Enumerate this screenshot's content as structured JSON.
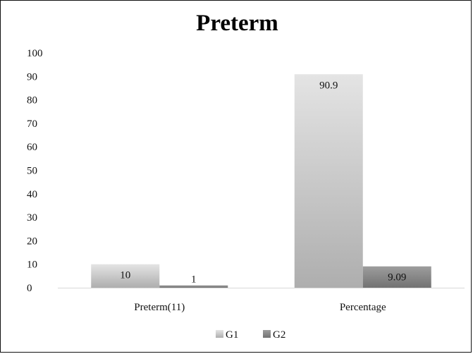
{
  "chart_data": {
    "type": "bar",
    "title": "Preterm",
    "categories": [
      "Preterm(11)",
      "Percentage"
    ],
    "series": [
      {
        "name": "G1",
        "values": [
          10,
          90.9
        ],
        "labels": [
          "10",
          "90.9"
        ],
        "color_top": "#e4e4e4",
        "color_bottom": "#aeaeae"
      },
      {
        "name": "G2",
        "values": [
          1,
          9.09
        ],
        "labels": [
          "1",
          "9.09"
        ],
        "color_top": "#9d9d9d",
        "color_bottom": "#727272"
      }
    ],
    "yticks": [
      "0",
      "10",
      "20",
      "30",
      "40",
      "50",
      "60",
      "70",
      "80",
      "90",
      "100"
    ],
    "ylim": [
      0,
      100
    ],
    "grid": false,
    "legend": "bottom"
  }
}
